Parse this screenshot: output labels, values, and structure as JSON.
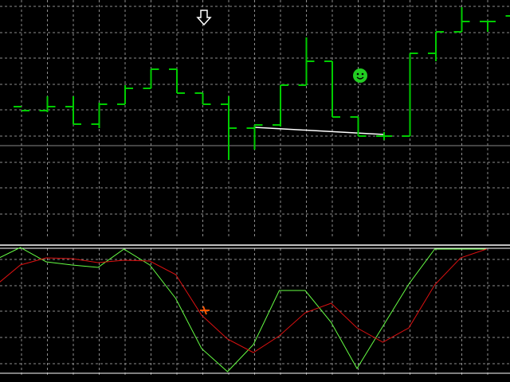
{
  "colors": {
    "background": "#000000",
    "grid": "#8c8c8c",
    "bars": "#00cc00",
    "trendline": "#ffffff",
    "separator": "#ffffff",
    "level": "#888888",
    "k_line": "#66ff44",
    "d_line": "#dd1111",
    "smiley": "#22cc22",
    "arrow": "#ffffff",
    "cross": "#ff5500"
  },
  "icons": {
    "sell_arrow": "down-arrow-icon",
    "smiley": "smiley-icon",
    "cross_marker": "cross-icon"
  },
  "chart_data": [
    {
      "type": "bar",
      "style": "ohlc",
      "grid": true,
      "bars": [
        {
          "o": 134,
          "h": 134,
          "l": 134,
          "c": 139
        },
        {
          "o": 139,
          "h": 121,
          "l": 141,
          "c": 134
        },
        {
          "o": 134,
          "h": 121,
          "l": 156,
          "c": 156
        },
        {
          "o": 156,
          "h": 129,
          "l": 161,
          "c": 131
        },
        {
          "o": 131,
          "h": 107,
          "l": 131,
          "c": 111
        },
        {
          "o": 111,
          "h": 87,
          "l": 111,
          "c": 87
        },
        {
          "o": 87,
          "h": 87,
          "l": 117,
          "c": 117
        },
        {
          "o": 117,
          "h": 117,
          "l": 131,
          "c": 131
        },
        {
          "o": 131,
          "h": 121,
          "l": 201,
          "c": 161
        },
        {
          "o": 161,
          "h": 157,
          "l": 188,
          "c": 157
        },
        {
          "o": 157,
          "h": 107,
          "l": 159,
          "c": 107
        },
        {
          "o": 107,
          "h": 47,
          "l": 107,
          "c": 77
        },
        {
          "o": 77,
          "h": 77,
          "l": 147,
          "c": 147
        },
        {
          "o": 147,
          "h": 147,
          "l": 171,
          "c": 171
        },
        {
          "o": 171,
          "h": 166,
          "l": 176,
          "c": 171
        },
        {
          "o": 171,
          "h": 67,
          "l": 171,
          "c": 67
        },
        {
          "o": 67,
          "h": 40,
          "l": 77,
          "c": 40
        },
        {
          "o": 40,
          "h": 9,
          "l": 40,
          "c": 27
        },
        {
          "o": 27,
          "h": 27,
          "l": 40,
          "c": 27
        },
        {
          "o": 20,
          "h": 9,
          "l": 40,
          "c": 20
        }
      ],
      "trendline": {
        "from_bar": 9,
        "to_bar": 14,
        "y_from": 160,
        "y_to": 169
      },
      "level": 183
    },
    {
      "type": "line",
      "grid": true,
      "levels": [
        312,
        469
      ],
      "series": [
        {
          "values": [
            327,
            311,
            329,
            333,
            336,
            313,
            333,
            375,
            438,
            467,
            433,
            365,
            365,
            405,
            463,
            410,
            357,
            313,
            313,
            313
          ]
        },
        {
          "values": [
            360,
            333,
            324,
            325,
            330,
            327,
            328,
            345,
            396,
            426,
            443,
            422,
            393,
            381,
            412,
            430,
            412,
            358,
            324,
            313
          ]
        }
      ]
    }
  ]
}
